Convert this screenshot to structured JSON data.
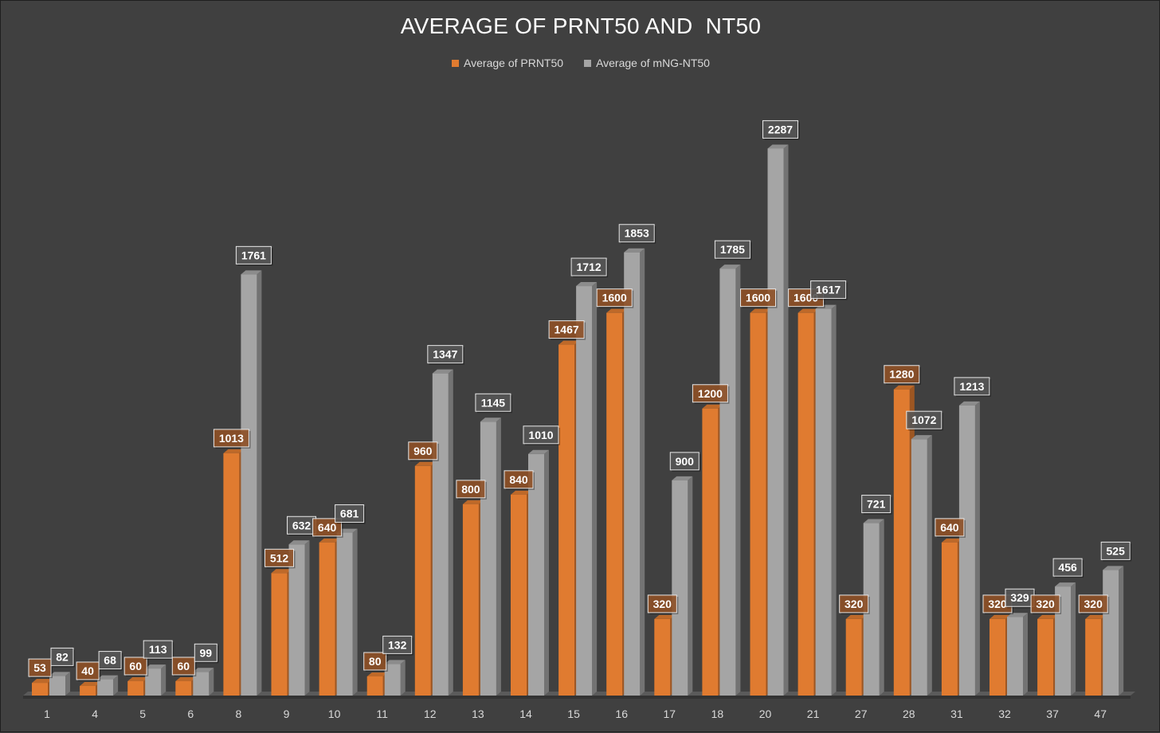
{
  "chart_data": {
    "type": "bar",
    "title": "AVERAGE OF PRNT50 AND  NT50",
    "xlabel": "",
    "ylabel": "",
    "ylim": [
      0,
      2500
    ],
    "grid": false,
    "legend_position": "top-center",
    "categories": [
      "1",
      "4",
      "5",
      "6",
      "8",
      "9",
      "10",
      "11",
      "12",
      "13",
      "14",
      "15",
      "16",
      "17",
      "18",
      "20",
      "21",
      "27",
      "28",
      "31",
      "32",
      "37",
      "47"
    ],
    "series": [
      {
        "name": "Average of PRNT50",
        "color": "#E07B30",
        "values": [
          53,
          40,
          60,
          60,
          1013,
          512,
          640,
          80,
          960,
          800,
          840,
          1467,
          1600,
          320,
          1200,
          1600,
          1600,
          320,
          1280,
          640,
          320,
          320,
          320
        ]
      },
      {
        "name": "Average of mNG-NT50",
        "color": "#A5A5A5",
        "values": [
          82,
          68,
          113,
          99,
          1761,
          632,
          681,
          132,
          1347,
          1145,
          1010,
          1712,
          1853,
          900,
          1785,
          2287,
          1617,
          721,
          1072,
          1213,
          329,
          456,
          525
        ]
      }
    ]
  }
}
